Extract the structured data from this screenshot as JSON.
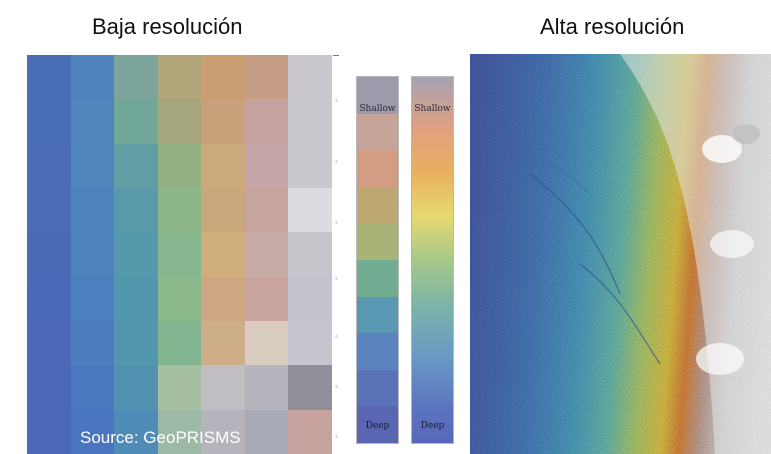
{
  "titles": {
    "low": "Baja resolución",
    "high": "Alta resolución"
  },
  "source": "Source: GeoPRISMS",
  "scales": {
    "discrete": {
      "top_label": "Shallow",
      "bottom_label": "Deep"
    },
    "continuous": {
      "top_label": "Shallow",
      "bottom_label": "Deep"
    }
  },
  "low_res_grid": {
    "colors": [
      [
        "#4a6eb6",
        "#4f83bd",
        "#7ba49a",
        "#b2a77a",
        "#caa073",
        "#c69e86",
        "#c9c7cb"
      ],
      [
        "#4a6db7",
        "#4e86bc",
        "#72a89a",
        "#a5a67c",
        "#c8a079",
        "#c6a3a0",
        "#c8c7cc"
      ],
      [
        "#4a6cb6",
        "#4e86bc",
        "#5f9ea2",
        "#93b083",
        "#cba97b",
        "#c4a6a8",
        "#c8c8ce"
      ],
      [
        "#4a6bb6",
        "#4e84bd",
        "#5a9aa8",
        "#8db68b",
        "#caa67b",
        "#c7a59e",
        "#dcdce0"
      ],
      [
        "#4a6ab6",
        "#4d82bd",
        "#559aac",
        "#86b78e",
        "#cfae7c",
        "#c6aaa6",
        "#c6c5cb"
      ],
      [
        "#4a69b6",
        "#4c7fbe",
        "#5496ad",
        "#8cb98a",
        "#cda682",
        "#c9a59d",
        "#c3c4cc"
      ],
      [
        "#4a68b5",
        "#4b7dbf",
        "#5297ae",
        "#82b490",
        "#cdae88",
        "#d8cdc0",
        "#c5c5cd"
      ],
      [
        "#4a68b5",
        "#4a79c0",
        "#5292b0",
        "#a5bfa0",
        "#c0bec3",
        "#b6b4bc",
        "#8e8f98"
      ],
      [
        "#4b67b5",
        "#4a76c1",
        "#4f8cb5",
        "#9cb9a6",
        "#b5b4bd",
        "#a8aab5",
        "#c8a29e"
      ]
    ]
  },
  "discrete_steps": [
    "#9d9aab",
    "#c7a49a",
    "#d29d82",
    "#bea871",
    "#a8b476",
    "#72ad93",
    "#5a97b2",
    "#5b84bf",
    "#5a72b8",
    "#5967b3"
  ]
}
